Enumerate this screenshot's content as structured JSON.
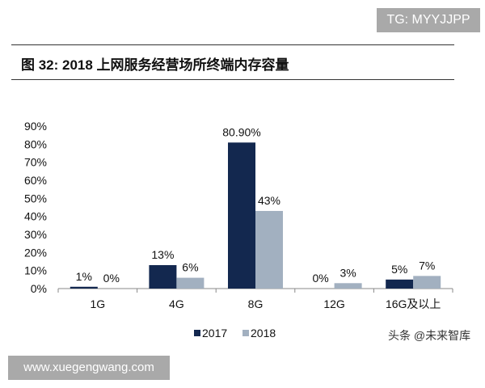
{
  "watermark_top": "TG: MYYJJPP",
  "watermark_bottom": "www.xuegengwang.com",
  "source": "头条 @未来智库",
  "chart_data": {
    "type": "bar",
    "title": "图 32:  2018 上网服务经营场所终端内存容量",
    "categories": [
      "1G",
      "4G",
      "8G",
      "12G",
      "16G及以上"
    ],
    "series": [
      {
        "name": "2017",
        "values": [
          1,
          13,
          80.9,
          0,
          5
        ],
        "labels": [
          "1%",
          "13%",
          "80.90%",
          "0%",
          "5%"
        ],
        "color": "#13284f"
      },
      {
        "name": "2018",
        "values": [
          0,
          6,
          43,
          3,
          7
        ],
        "labels": [
          "0%",
          "6%",
          "43%",
          "3%",
          "7%"
        ],
        "color": "#a2b0c0"
      }
    ],
    "yticks": [
      "0%",
      "10%",
      "20%",
      "30%",
      "40%",
      "50%",
      "60%",
      "70%",
      "80%",
      "90%"
    ],
    "ylim": [
      0,
      90
    ],
    "legend": "bottom",
    "grid": false
  }
}
